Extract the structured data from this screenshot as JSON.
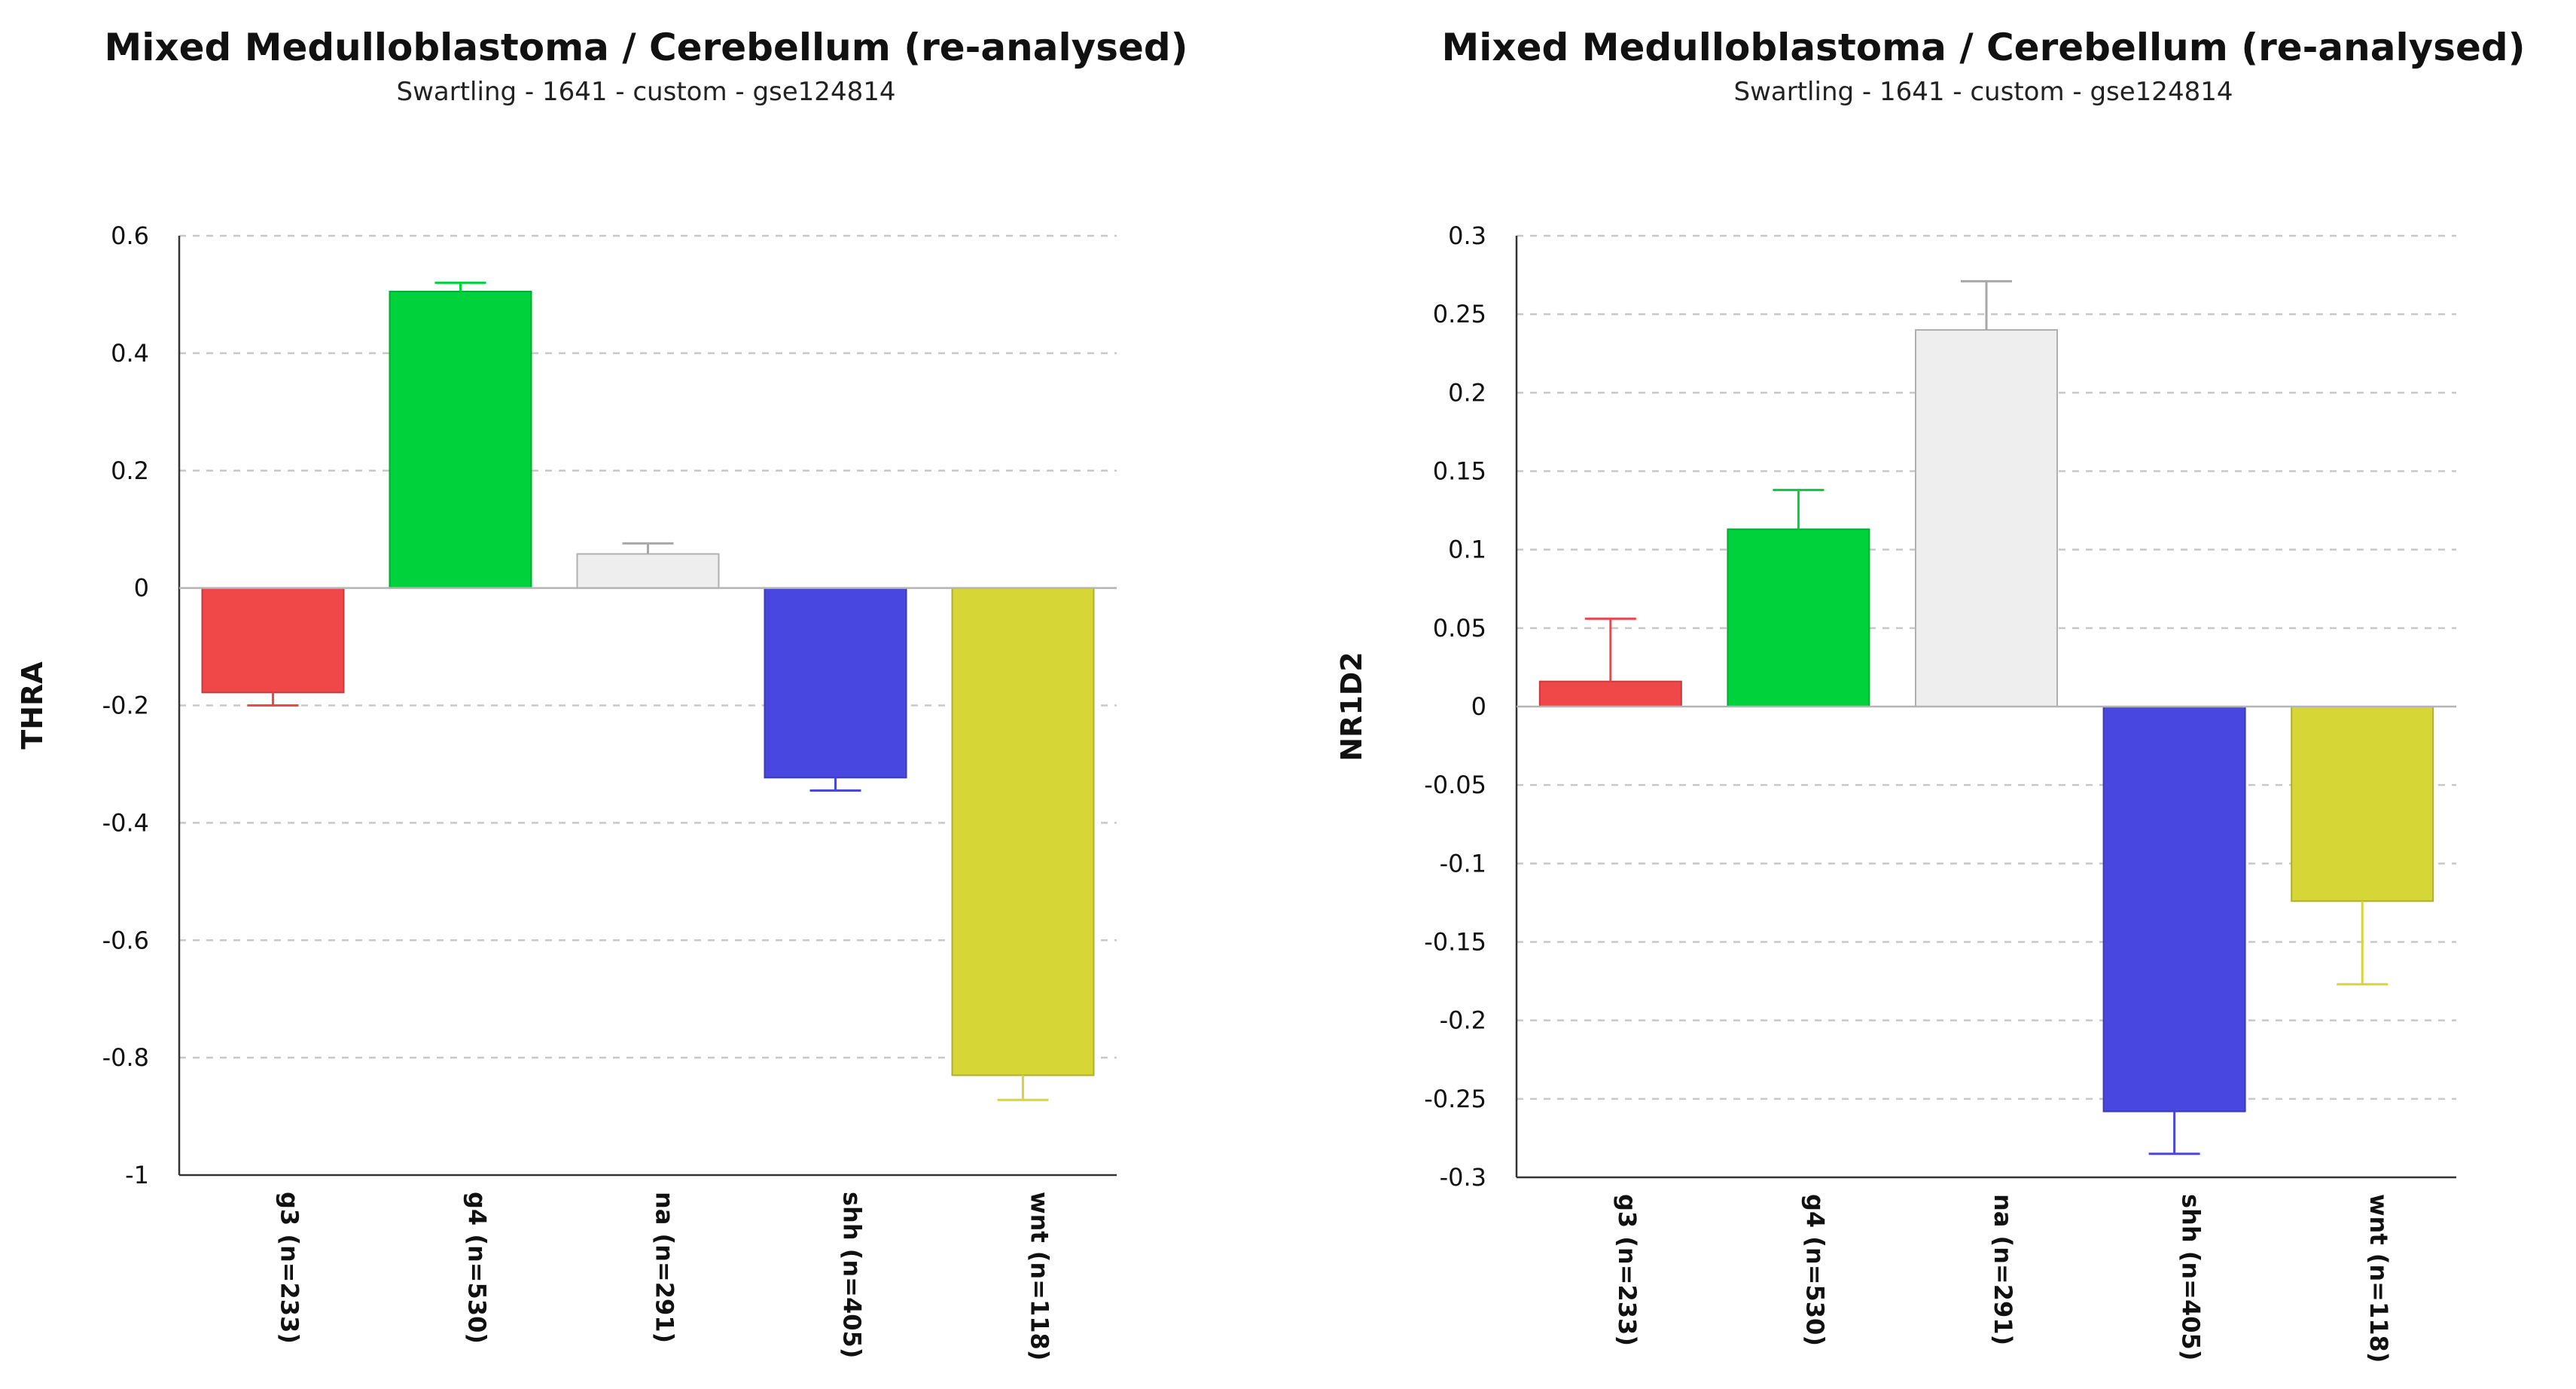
{
  "chart_data": [
    {
      "type": "bar",
      "title": "Mixed Medulloblastoma / Cerebellum (re-analysed)",
      "subtitle": "Swartling - 1641 - custom - gse124814",
      "xlabel": "",
      "ylabel": "THRA",
      "ylim": [
        -1,
        0.6
      ],
      "yticks": [
        "0.6",
        "0.4",
        "0.2",
        "0",
        "-0.2",
        "-0.4",
        "-0.6",
        "-0.8",
        "-1"
      ],
      "grid": true,
      "categories": [
        "g3 (n=233)",
        "g4 (n=530)",
        "na (n=291)",
        "shh (n=405)",
        "wnt (n=118)"
      ],
      "values": [
        -0.178,
        0.505,
        0.058,
        -0.323,
        -0.83
      ],
      "error": [
        0.022,
        0.015,
        0.018,
        0.022,
        0.042
      ],
      "colors": [
        "#f04848",
        "#00d23c",
        "#eeeeee",
        "#4848e0",
        "#d6d637"
      ]
    },
    {
      "type": "bar",
      "title": "Mixed Medulloblastoma / Cerebellum (re-analysed)",
      "subtitle": "Swartling - 1641 - custom - gse124814",
      "xlabel": "",
      "ylabel": "NR1D2",
      "ylim": [
        -0.3,
        0.3
      ],
      "yticks": [
        "0.3",
        "0.25",
        "0.2",
        "0.15",
        "0.1",
        "0.05",
        "0",
        "-0.05",
        "-0.1",
        "-0.15",
        "-0.2",
        "-0.25",
        "-0.3"
      ],
      "grid": true,
      "categories": [
        "g3 (n=233)",
        "g4 (n=530)",
        "na (n=291)",
        "shh (n=405)",
        "wnt (n=118)"
      ],
      "values": [
        0.016,
        0.113,
        0.24,
        -0.258,
        -0.124
      ],
      "error": [
        0.04,
        0.025,
        0.031,
        0.027,
        0.053
      ],
      "colors": [
        "#f04848",
        "#00d23c",
        "#eeeeee",
        "#4848e0",
        "#d6d637"
      ]
    }
  ]
}
